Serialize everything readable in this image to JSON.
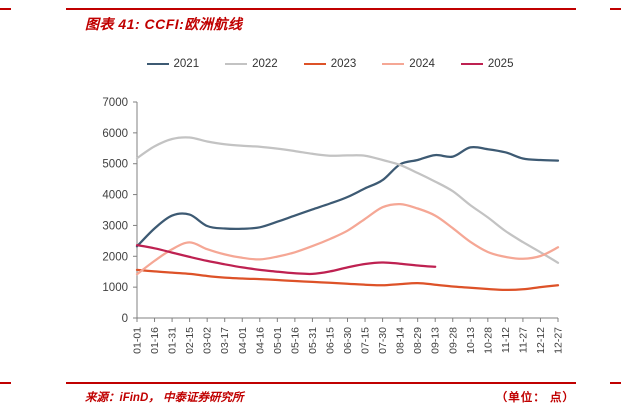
{
  "page": {
    "title": "图表 41:  CCFI:欧洲航线",
    "source": "来源：iFinD， 中泰证券研究所",
    "unit": "（单位： 点）",
    "accent_color": "#C00000"
  },
  "chart_data": {
    "type": "line",
    "title": "CCFI 欧洲航线",
    "categories": [
      "01-01",
      "01-16",
      "01-31",
      "02-15",
      "03-02",
      "03-17",
      "04-01",
      "04-16",
      "05-01",
      "05-16",
      "05-31",
      "06-15",
      "06-30",
      "07-15",
      "07-30",
      "08-14",
      "08-29",
      "09-13",
      "09-28",
      "10-13",
      "10-28",
      "11-12",
      "11-27",
      "12-12",
      "12-27"
    ],
    "series": [
      {
        "name": "2021",
        "color": "#3D5A73",
        "values": [
          2320,
          2900,
          3320,
          3350,
          2980,
          2900,
          2890,
          2940,
          3120,
          3320,
          3520,
          3710,
          3920,
          4200,
          4470,
          4980,
          5120,
          5280,
          5230,
          5530,
          5470,
          5370,
          5170,
          5120,
          5100
        ]
      },
      {
        "name": "2022",
        "color": "#C3C3C3",
        "values": [
          5180,
          5560,
          5800,
          5850,
          5720,
          5630,
          5580,
          5550,
          5490,
          5410,
          5320,
          5260,
          5270,
          5260,
          5120,
          4960,
          4700,
          4420,
          4110,
          3660,
          3260,
          2820,
          2460,
          2130,
          1790
        ]
      },
      {
        "name": "2023",
        "color": "#DD5228",
        "values": [
          1560,
          1510,
          1470,
          1430,
          1360,
          1310,
          1280,
          1260,
          1230,
          1200,
          1170,
          1140,
          1110,
          1080,
          1060,
          1100,
          1130,
          1080,
          1020,
          980,
          940,
          910,
          930,
          1000,
          1060
        ]
      },
      {
        "name": "2024",
        "color": "#F5A795",
        "values": [
          1420,
          1850,
          2230,
          2450,
          2230,
          2060,
          1950,
          1900,
          1990,
          2130,
          2330,
          2560,
          2830,
          3210,
          3590,
          3690,
          3550,
          3320,
          2910,
          2470,
          2140,
          1980,
          1920,
          2010,
          2290
        ]
      },
      {
        "name": "2025",
        "color": "#BE2151",
        "values": [
          2360,
          2260,
          2120,
          1980,
          1850,
          1740,
          1640,
          1560,
          1500,
          1450,
          1430,
          1510,
          1640,
          1750,
          1800,
          1760,
          1700,
          1660
        ]
      }
    ],
    "ylim": [
      0,
      7000
    ],
    "ytick_step": 1000,
    "grid": false,
    "legend_position": "top"
  }
}
